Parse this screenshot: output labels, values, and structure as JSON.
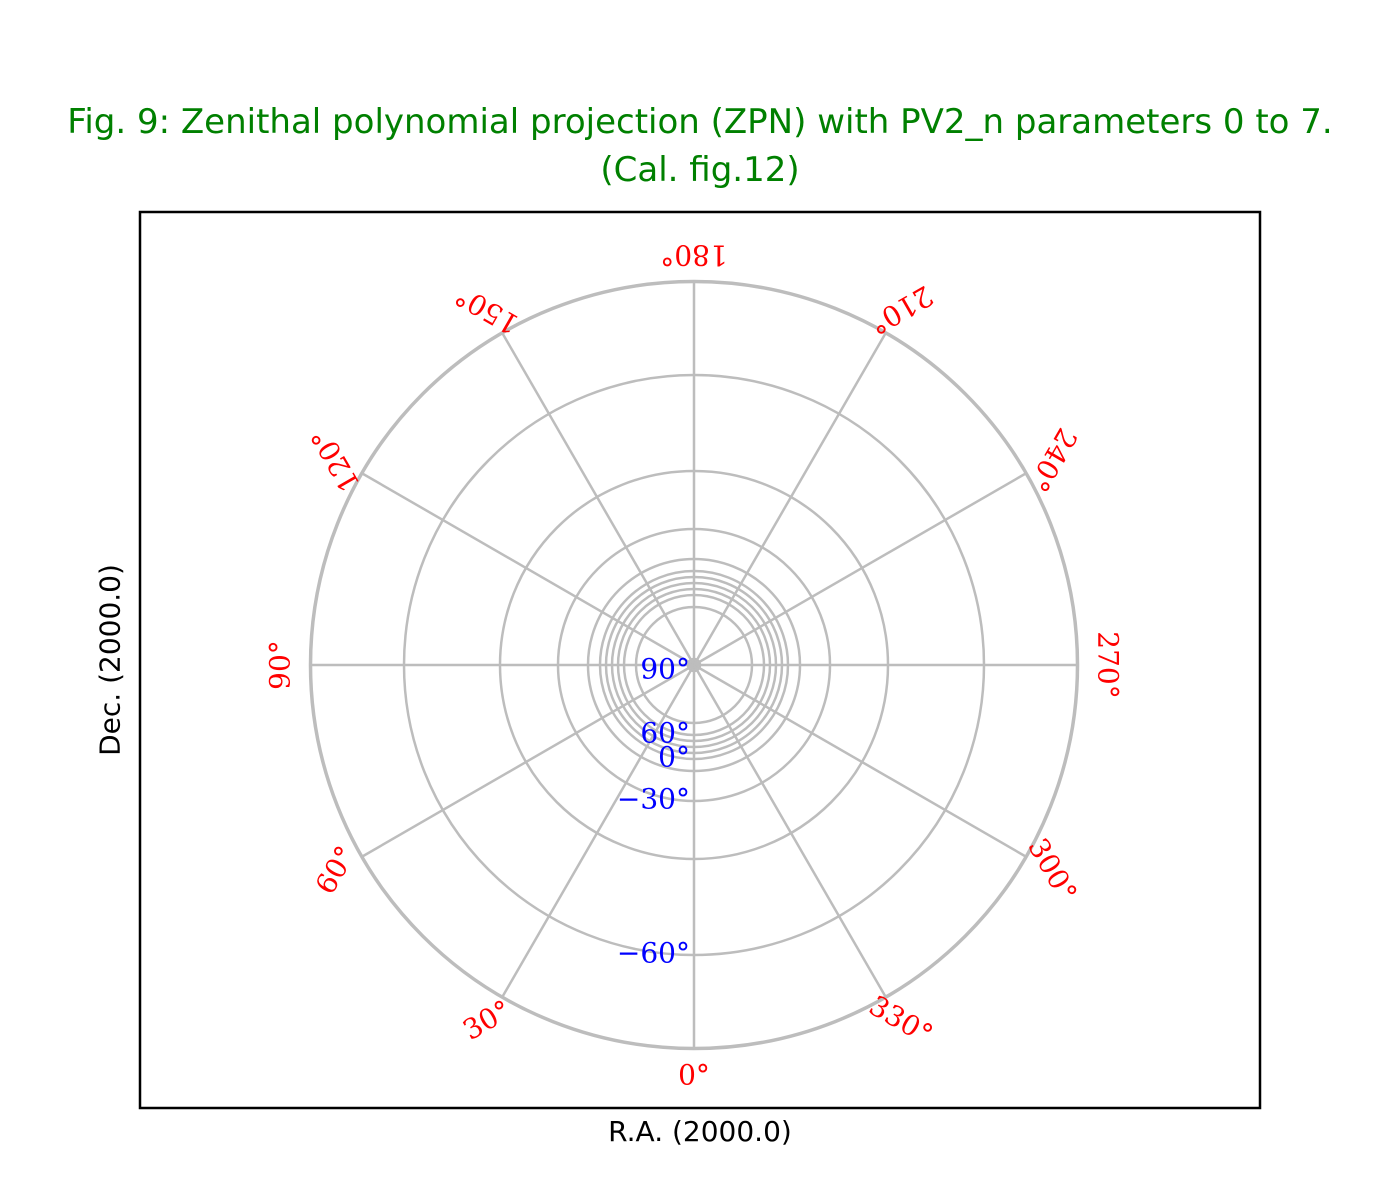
{
  "title_line1": "Fig. 9: Zenithal polynomial projection (ZPN) with PV2_n parameters 0 to 7.",
  "title_line2": "(Cal. fig.12)",
  "chart_data": {
    "type": "polar-graticule",
    "projection": "ZPN",
    "xlabel": "R.A. (2000.0)",
    "ylabel": "Dec. (2000.0)",
    "grid": true,
    "ra_meridians_deg": [
      0,
      30,
      60,
      90,
      120,
      150,
      180,
      210,
      240,
      270,
      300,
      330
    ],
    "ra_tick_labels": [
      "0°",
      "30°",
      "60°",
      "90°",
      "120°",
      "150°",
      "180°",
      "210°",
      "240°",
      "270°",
      "300°",
      "330°"
    ],
    "dec_parallels_deg": [
      90,
      75,
      60,
      45,
      30,
      15,
      0,
      -15,
      -30,
      -45,
      -60,
      -75,
      -90
    ],
    "dec_tick_labels": [
      {
        "dec": 90,
        "text": "90°"
      },
      {
        "dec": 60,
        "text": "60°"
      },
      {
        "dec": 0,
        "text": "0°"
      },
      {
        "dec": -30,
        "text": "−30°"
      },
      {
        "dec": -60,
        "text": "−60°"
      }
    ],
    "ra_label_color": "#ff0000",
    "dec_label_color": "#0000ff",
    "grid_color": "#bdbdbd",
    "title_color": "#008000"
  }
}
